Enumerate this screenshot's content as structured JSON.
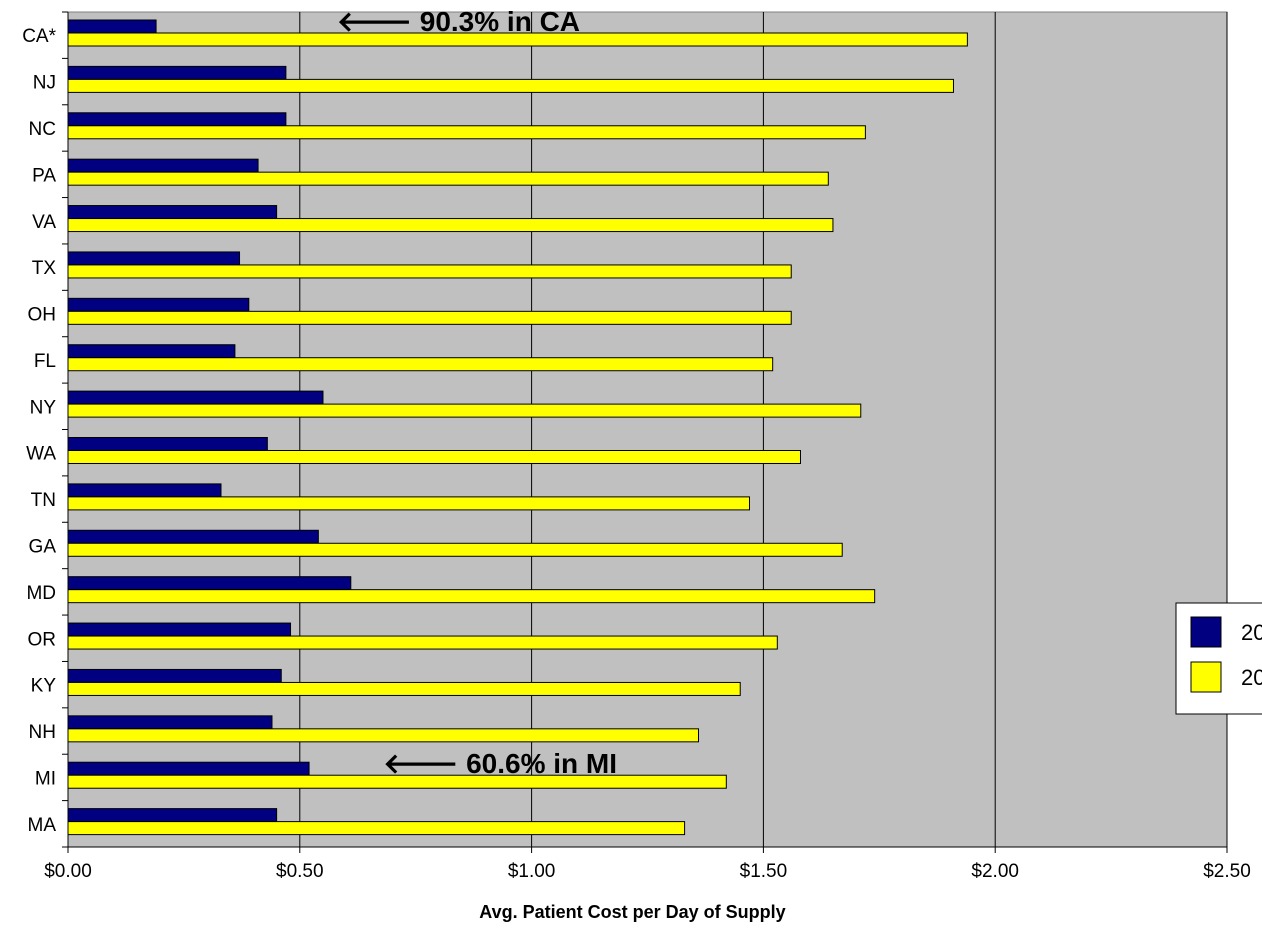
{
  "chart_data": {
    "type": "bar",
    "orientation": "horizontal",
    "title": "",
    "subtitle": "",
    "xlabel": "Avg. Patient Cost per Day of Supply",
    "ylabel": "",
    "xlim": [
      0,
      2.5
    ],
    "x_ticks": [
      "$0.00",
      "$0.50",
      "$1.00",
      "$1.50",
      "$2.00",
      "$2.50"
    ],
    "x_tick_values": [
      0,
      0.5,
      1.0,
      1.5,
      2.0,
      2.5
    ],
    "grid": true,
    "background": "#c0c0c0",
    "categories": [
      "CA",
      "NJ",
      "NC",
      "PA",
      "VA",
      "TX",
      "OH",
      "FL",
      "NY",
      "WA",
      "TN",
      "GA",
      "MD",
      "OR",
      "KY",
      "NH",
      "MI",
      "MA"
    ],
    "category_display": [
      "CA*",
      "NJ",
      "NC",
      "PA",
      "VA",
      "TX",
      "OH",
      "FL",
      "NY",
      "WA",
      "TN",
      "GA",
      "MD",
      "OR",
      "KY",
      "NH",
      "MI",
      "MA"
    ],
    "series": [
      {
        "name": "20",
        "color": "#000080",
        "values": [
          0.19,
          0.47,
          0.47,
          0.41,
          0.45,
          0.37,
          0.39,
          0.36,
          0.55,
          0.43,
          0.33,
          0.54,
          0.61,
          0.48,
          0.46,
          0.44,
          0.52,
          0.45
        ]
      },
      {
        "name": "20",
        "color": "#ffff00",
        "values": [
          1.94,
          1.91,
          1.72,
          1.64,
          1.65,
          1.56,
          1.56,
          1.52,
          1.71,
          1.58,
          1.47,
          1.67,
          1.74,
          1.53,
          1.45,
          1.36,
          1.42,
          1.33
        ]
      }
    ],
    "annotations": [
      {
        "text": "🡐 90.3% in CA",
        "category": "CA",
        "x": 0.58
      },
      {
        "text": "🡐 60.6% in MI",
        "category": "MI",
        "x": 0.68
      }
    ],
    "legend": {
      "placement": "right",
      "entries": [
        "20",
        "20"
      ]
    }
  }
}
